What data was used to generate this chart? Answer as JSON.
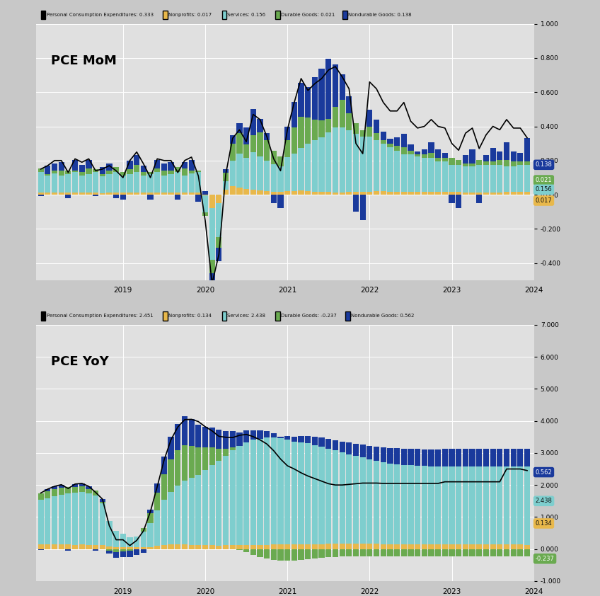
{
  "title_mom": "PCE MoM",
  "title_yoy": "PCE YoY",
  "colors": {
    "nonprofit": "#e8b84b",
    "services": "#7ecece",
    "durable": "#6aaa50",
    "nondurable": "#1a3a9c",
    "pce_line": "#000000",
    "background": "#c8c8c8",
    "plot_bg": "#e0e0e0",
    "legend_bg": "#b0b0b0",
    "grid": "#ffffff"
  },
  "mom_ylim": [
    -0.5,
    1.0
  ],
  "yoy_ylim": [
    -1.0,
    7.0
  ],
  "yticks_mom": [
    -0.4,
    -0.2,
    0.0,
    0.2,
    0.4,
    0.6,
    0.8,
    1.0
  ],
  "yticks_yoy": [
    -1.0,
    0.0,
    1.0,
    2.0,
    3.0,
    4.0,
    5.0,
    6.0,
    7.0
  ],
  "legend_mom_labels": [
    "Personal Consumption Expenditures: 0.333",
    "Nonprofits: 0.017",
    "Services: 0.156",
    "Durable Goods: 0.021",
    "Nondurable Goods: 0.138"
  ],
  "legend_yoy_labels": [
    "Personal Consumption Expenditures: 2.451",
    "Nonprofits: 0.134",
    "Services: 2.438",
    "Durable Goods: -0.237",
    "Nondurable Goods: 0.562"
  ],
  "year_tick_months": [
    12,
    24,
    36,
    48,
    60,
    72
  ],
  "year_labels": [
    "2019",
    "2020",
    "2021",
    "2022",
    "2023",
    "2024"
  ],
  "mom_nonprofit": [
    0.012,
    0.011,
    0.013,
    0.012,
    0.011,
    0.012,
    0.013,
    0.012,
    0.011,
    0.01,
    0.012,
    0.011,
    0.012,
    0.011,
    0.013,
    0.012,
    0.011,
    0.012,
    0.013,
    0.012,
    0.011,
    0.012,
    0.013,
    0.012,
    -0.005,
    -0.08,
    -0.05,
    0.03,
    0.05,
    0.04,
    0.035,
    0.03,
    0.025,
    0.02,
    0.018,
    0.016,
    0.02,
    0.022,
    0.025,
    0.02,
    0.018,
    0.016,
    0.015,
    0.014,
    0.014,
    0.016,
    0.017,
    0.018,
    0.018,
    0.02,
    0.019,
    0.018,
    0.017,
    0.016,
    0.016,
    0.015,
    0.015,
    0.015,
    0.015,
    0.016,
    0.015,
    0.015,
    0.014,
    0.014,
    0.013,
    0.013,
    0.014,
    0.014,
    0.015,
    0.015,
    0.016,
    0.017
  ],
  "mom_services": [
    0.12,
    0.1,
    0.11,
    0.1,
    0.11,
    0.12,
    0.1,
    0.11,
    0.12,
    0.1,
    0.11,
    0.12,
    0.1,
    0.11,
    0.12,
    0.1,
    0.11,
    0.12,
    0.1,
    0.11,
    0.12,
    0.1,
    0.11,
    0.12,
    -0.1,
    -0.3,
    -0.2,
    0.05,
    0.15,
    0.2,
    0.18,
    0.22,
    0.2,
    0.18,
    0.16,
    0.15,
    0.2,
    0.22,
    0.25,
    0.28,
    0.3,
    0.32,
    0.35,
    0.38,
    0.38,
    0.36,
    0.34,
    0.32,
    0.32,
    0.3,
    0.28,
    0.26,
    0.24,
    0.22,
    0.22,
    0.21,
    0.2,
    0.2,
    0.18,
    0.18,
    0.16,
    0.16,
    0.15,
    0.15,
    0.16,
    0.16,
    0.16,
    0.16,
    0.15,
    0.15,
    0.16,
    0.156
  ],
  "mom_durable": [
    0.02,
    0.01,
    0.02,
    0.03,
    0.02,
    0.01,
    0.02,
    0.03,
    0.02,
    0.01,
    0.02,
    0.03,
    0.02,
    0.03,
    0.04,
    0.02,
    0.01,
    0.02,
    0.03,
    0.02,
    0.03,
    0.04,
    0.02,
    0.01,
    -0.02,
    -0.08,
    -0.06,
    0.05,
    0.1,
    0.12,
    0.08,
    0.1,
    0.14,
    0.12,
    0.08,
    0.06,
    0.1,
    0.15,
    0.18,
    0.15,
    0.12,
    0.1,
    0.08,
    0.12,
    0.16,
    0.1,
    0.06,
    0.04,
    0.06,
    0.04,
    0.02,
    0.02,
    0.03,
    0.04,
    0.02,
    0.01,
    0.02,
    0.03,
    0.02,
    0.02,
    0.04,
    0.03,
    0.02,
    0.02,
    0.03,
    0.02,
    0.02,
    0.03,
    0.04,
    0.03,
    0.02,
    0.021
  ],
  "mom_nondurable": [
    -0.01,
    0.05,
    0.04,
    0.05,
    -0.02,
    0.06,
    0.04,
    0.05,
    -0.01,
    0.04,
    0.04,
    -0.02,
    -0.03,
    0.05,
    0.06,
    0.04,
    -0.03,
    0.05,
    0.04,
    0.05,
    -0.03,
    0.04,
    0.06,
    -0.04,
    0.02,
    -0.1,
    -0.08,
    0.02,
    0.05,
    0.06,
    0.1,
    0.15,
    0.08,
    0.04,
    -0.05,
    -0.08,
    0.08,
    0.15,
    0.2,
    0.18,
    0.25,
    0.3,
    0.35,
    0.25,
    0.15,
    0.1,
    -0.1,
    -0.15,
    0.1,
    0.08,
    0.05,
    0.03,
    0.05,
    0.08,
    0.04,
    0.02,
    0.03,
    0.06,
    0.05,
    0.03,
    -0.05,
    -0.08,
    0.05,
    0.08,
    -0.05,
    0.04,
    0.08,
    0.05,
    0.1,
    0.06,
    0.05,
    0.138
  ],
  "mom_pce_line": [
    0.15,
    0.17,
    0.2,
    0.2,
    0.13,
    0.21,
    0.19,
    0.21,
    0.14,
    0.15,
    0.17,
    0.14,
    0.1,
    0.2,
    0.25,
    0.18,
    0.1,
    0.21,
    0.2,
    0.2,
    0.13,
    0.2,
    0.22,
    0.11,
    -0.15,
    -0.52,
    -0.35,
    0.12,
    0.33,
    0.38,
    0.31,
    0.47,
    0.44,
    0.34,
    0.21,
    0.14,
    0.38,
    0.54,
    0.68,
    0.61,
    0.65,
    0.68,
    0.73,
    0.75,
    0.69,
    0.62,
    0.3,
    0.24,
    0.66,
    0.62,
    0.54,
    0.49,
    0.49,
    0.54,
    0.43,
    0.39,
    0.4,
    0.44,
    0.4,
    0.39,
    0.3,
    0.26,
    0.36,
    0.39,
    0.27,
    0.35,
    0.4,
    0.38,
    0.44,
    0.39,
    0.39,
    0.333
  ],
  "yoy_nonprofit": [
    0.14,
    0.14,
    0.14,
    0.14,
    0.14,
    0.13,
    0.14,
    0.13,
    0.13,
    0.13,
    0.08,
    0.07,
    0.07,
    0.06,
    0.05,
    0.05,
    0.07,
    0.1,
    0.13,
    0.14,
    0.14,
    0.14,
    0.13,
    0.12,
    0.12,
    0.12,
    0.11,
    0.12,
    0.13,
    0.13,
    0.13,
    0.13,
    0.13,
    0.13,
    0.14,
    0.14,
    0.14,
    0.14,
    0.14,
    0.15,
    0.15,
    0.15,
    0.16,
    0.16,
    0.16,
    0.16,
    0.16,
    0.16,
    0.16,
    0.16,
    0.15,
    0.15,
    0.15,
    0.14,
    0.14,
    0.14,
    0.14,
    0.14,
    0.14,
    0.14,
    0.14,
    0.14,
    0.14,
    0.14,
    0.14,
    0.14,
    0.14,
    0.14,
    0.14,
    0.14,
    0.14,
    0.134
  ],
  "yoy_services": [
    1.4,
    1.45,
    1.5,
    1.55,
    1.6,
    1.62,
    1.65,
    1.6,
    1.55,
    1.3,
    0.8,
    0.5,
    0.4,
    0.3,
    0.35,
    0.5,
    0.75,
    1.1,
    1.4,
    1.65,
    1.85,
    2.0,
    2.1,
    2.2,
    2.35,
    2.5,
    2.65,
    2.8,
    2.95,
    3.1,
    3.2,
    3.28,
    3.32,
    3.35,
    3.35,
    3.32,
    3.28,
    3.22,
    3.18,
    3.15,
    3.1,
    3.05,
    2.98,
    2.92,
    2.85,
    2.8,
    2.74,
    2.7,
    2.65,
    2.6,
    2.56,
    2.52,
    2.5,
    2.48,
    2.48,
    2.46,
    2.45,
    2.44,
    2.44,
    2.44,
    2.44,
    2.44,
    2.44,
    2.44,
    2.44,
    2.44,
    2.44,
    2.44,
    2.44,
    2.44,
    2.44,
    2.438
  ],
  "yoy_durable": [
    0.2,
    0.22,
    0.24,
    0.22,
    0.2,
    0.18,
    0.16,
    0.15,
    0.14,
    0.05,
    -0.05,
    -0.1,
    -0.08,
    -0.05,
    0.0,
    0.1,
    0.3,
    0.55,
    0.8,
    1.0,
    1.1,
    1.1,
    1.0,
    0.85,
    0.7,
    0.55,
    0.38,
    0.22,
    0.1,
    -0.02,
    -0.1,
    -0.18,
    -0.25,
    -0.3,
    -0.34,
    -0.36,
    -0.36,
    -0.35,
    -0.34,
    -0.32,
    -0.3,
    -0.28,
    -0.26,
    -0.24,
    -0.22,
    -0.22,
    -0.22,
    -0.22,
    -0.22,
    -0.22,
    -0.22,
    -0.22,
    -0.22,
    -0.23,
    -0.23,
    -0.23,
    -0.23,
    -0.23,
    -0.23,
    -0.23,
    -0.23,
    -0.23,
    -0.23,
    -0.23,
    -0.23,
    -0.23,
    -0.23,
    -0.23,
    -0.23,
    -0.23,
    -0.237,
    -0.237
  ],
  "yoy_nondurable": [
    -0.02,
    0.06,
    0.08,
    0.1,
    -0.05,
    0.1,
    0.1,
    0.08,
    -0.05,
    0.08,
    -0.1,
    -0.18,
    -0.18,
    -0.2,
    -0.18,
    -0.12,
    0.1,
    0.3,
    0.55,
    0.72,
    0.82,
    0.9,
    0.82,
    0.72,
    0.65,
    0.62,
    0.58,
    0.55,
    0.5,
    0.42,
    0.38,
    0.3,
    0.25,
    0.2,
    0.12,
    0.05,
    0.1,
    0.15,
    0.2,
    0.22,
    0.25,
    0.28,
    0.3,
    0.32,
    0.34,
    0.36,
    0.38,
    0.4,
    0.42,
    0.44,
    0.46,
    0.48,
    0.5,
    0.52,
    0.52,
    0.52,
    0.52,
    0.52,
    0.52,
    0.55,
    0.55,
    0.55,
    0.55,
    0.55,
    0.56,
    0.56,
    0.56,
    0.56,
    0.56,
    0.56,
    0.56,
    0.562
  ],
  "yoy_pce_line": [
    1.75,
    1.87,
    1.96,
    2.01,
    1.89,
    2.03,
    2.05,
    1.96,
    1.77,
    1.56,
    0.73,
    0.29,
    0.29,
    0.11,
    0.27,
    0.57,
    1.17,
    1.95,
    2.78,
    3.41,
    3.81,
    4.04,
    4.05,
    3.98,
    3.82,
    3.69,
    3.52,
    3.49,
    3.48,
    3.55,
    3.58,
    3.51,
    3.41,
    3.28,
    3.07,
    2.81,
    2.6,
    2.5,
    2.38,
    2.28,
    2.2,
    2.12,
    2.04,
    2.0,
    2.0,
    2.02,
    2.04,
    2.06,
    2.06,
    2.06,
    2.05,
    2.05,
    2.05,
    2.05,
    2.05,
    2.05,
    2.05,
    2.05,
    2.05,
    2.1,
    2.1,
    2.1,
    2.1,
    2.1,
    2.1,
    2.1,
    2.1,
    2.1,
    2.5,
    2.5,
    2.5,
    2.451
  ]
}
